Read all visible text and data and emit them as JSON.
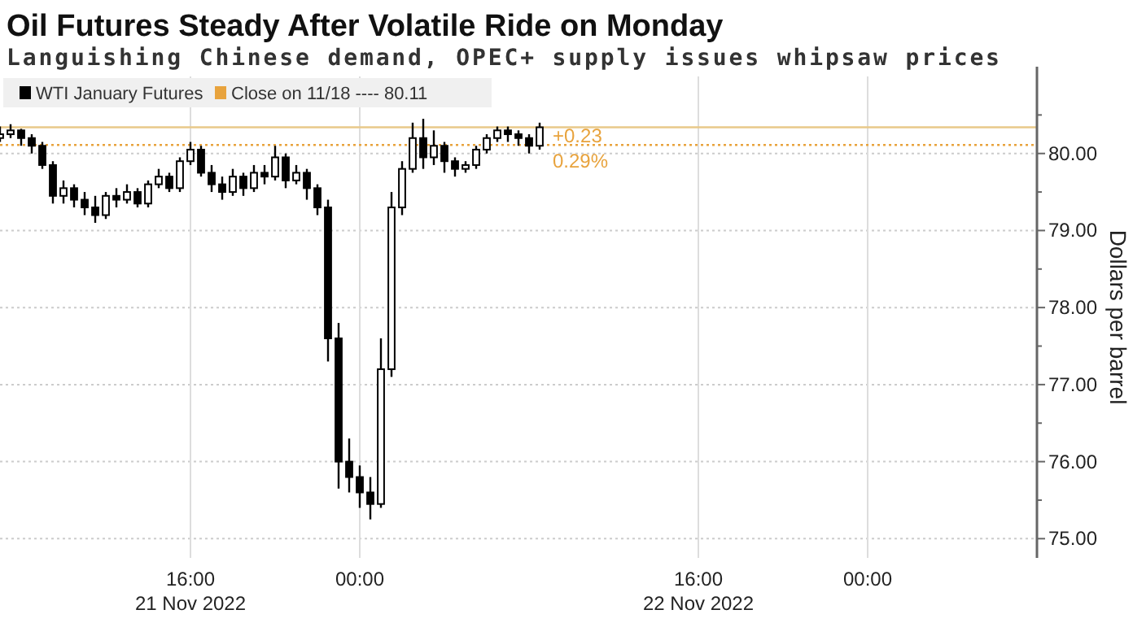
{
  "chart_data": {
    "type": "candlestick",
    "title": "Oil Futures Steady After Volatile Ride on Monday",
    "subtitle": "Languishing Chinese demand, OPEC+ supply issues whipsaw prices",
    "ylabel": "Dollars per barrel",
    "x": [
      "2022-11-21T07:00",
      "2022-11-21T07:30",
      "2022-11-21T08:00",
      "2022-11-21T08:30",
      "2022-11-21T09:00",
      "2022-11-21T09:30",
      "2022-11-21T10:00",
      "2022-11-21T10:30",
      "2022-11-21T11:00",
      "2022-11-21T11:30",
      "2022-11-21T12:00",
      "2022-11-21T12:30",
      "2022-11-21T13:00",
      "2022-11-21T13:30",
      "2022-11-21T14:00",
      "2022-11-21T14:30",
      "2022-11-21T15:00",
      "2022-11-21T15:30",
      "2022-11-21T16:00",
      "2022-11-21T16:30",
      "2022-11-21T17:00",
      "2022-11-21T17:30",
      "2022-11-21T18:00",
      "2022-11-21T18:30",
      "2022-11-21T19:00",
      "2022-11-21T19:30",
      "2022-11-21T20:00",
      "2022-11-21T20:30",
      "2022-11-21T21:00",
      "2022-11-21T21:30",
      "2022-11-21T22:00",
      "2022-11-21T22:30",
      "2022-11-21T23:00",
      "2022-11-21T23:30",
      "2022-11-22T00:00",
      "2022-11-22T00:30",
      "2022-11-22T01:00",
      "2022-11-22T01:30",
      "2022-11-22T02:00",
      "2022-11-22T02:30",
      "2022-11-22T03:00",
      "2022-11-22T03:30",
      "2022-11-22T04:00",
      "2022-11-22T04:30",
      "2022-11-22T05:00",
      "2022-11-22T05:30",
      "2022-11-22T06:00",
      "2022-11-22T06:30",
      "2022-11-22T07:00",
      "2022-11-22T07:30",
      "2022-11-22T08:00",
      "2022-11-22T08:30"
    ],
    "series": [
      {
        "name": "WTI January Futures",
        "color": "#000000",
        "ohlc": [
          [
            80.2,
            80.35,
            80.15,
            80.25
          ],
          [
            80.25,
            80.38,
            80.2,
            80.3
          ],
          [
            80.3,
            80.32,
            80.1,
            80.2
          ],
          [
            80.2,
            80.25,
            80.0,
            80.1
          ],
          [
            80.1,
            80.15,
            79.8,
            79.85
          ],
          [
            79.85,
            79.9,
            79.35,
            79.45
          ],
          [
            79.45,
            79.65,
            79.35,
            79.55
          ],
          [
            79.55,
            79.6,
            79.3,
            79.4
          ],
          [
            79.4,
            79.5,
            79.2,
            79.3
          ],
          [
            79.3,
            79.45,
            79.1,
            79.2
          ],
          [
            79.2,
            79.5,
            79.15,
            79.45
          ],
          [
            79.45,
            79.55,
            79.3,
            79.4
          ],
          [
            79.4,
            79.6,
            79.35,
            79.5
          ],
          [
            79.5,
            79.55,
            79.3,
            79.35
          ],
          [
            79.35,
            79.65,
            79.3,
            79.6
          ],
          [
            79.6,
            79.8,
            79.55,
            79.7
          ],
          [
            79.7,
            79.75,
            79.5,
            79.55
          ],
          [
            79.55,
            79.95,
            79.5,
            79.9
          ],
          [
            79.9,
            80.15,
            79.85,
            80.05
          ],
          [
            80.05,
            80.1,
            79.7,
            79.75
          ],
          [
            79.75,
            79.85,
            79.5,
            79.6
          ],
          [
            79.6,
            79.7,
            79.4,
            79.5
          ],
          [
            79.5,
            79.8,
            79.45,
            79.7
          ],
          [
            79.7,
            79.75,
            79.45,
            79.55
          ],
          [
            79.55,
            79.85,
            79.5,
            79.75
          ],
          [
            79.75,
            79.85,
            79.6,
            79.7
          ],
          [
            79.7,
            80.1,
            79.65,
            79.95
          ],
          [
            79.95,
            80.0,
            79.55,
            79.65
          ],
          [
            79.65,
            79.85,
            79.6,
            79.75
          ],
          [
            79.75,
            79.8,
            79.4,
            79.55
          ],
          [
            79.55,
            79.6,
            79.2,
            79.3
          ],
          [
            79.3,
            79.4,
            77.3,
            77.6
          ],
          [
            77.6,
            77.8,
            75.65,
            76.0
          ],
          [
            76.0,
            76.3,
            75.6,
            75.8
          ],
          [
            75.8,
            75.95,
            75.4,
            75.6
          ],
          [
            75.6,
            75.8,
            75.25,
            75.45
          ],
          [
            75.45,
            77.6,
            75.4,
            77.2
          ],
          [
            77.2,
            79.5,
            77.1,
            79.3
          ],
          [
            79.3,
            79.9,
            79.2,
            79.8
          ],
          [
            79.8,
            80.4,
            79.75,
            80.2
          ],
          [
            80.2,
            80.45,
            79.8,
            79.95
          ],
          [
            79.95,
            80.3,
            79.85,
            80.1
          ],
          [
            80.1,
            80.15,
            79.75,
            79.9
          ],
          [
            79.9,
            79.95,
            79.7,
            79.8
          ],
          [
            79.8,
            79.9,
            79.75,
            79.85
          ],
          [
            79.85,
            80.1,
            79.8,
            80.05
          ],
          [
            80.05,
            80.25,
            80.0,
            80.2
          ],
          [
            80.2,
            80.35,
            80.15,
            80.3
          ],
          [
            80.3,
            80.35,
            80.15,
            80.25
          ],
          [
            80.25,
            80.3,
            80.1,
            80.2
          ],
          [
            80.2,
            80.25,
            80.0,
            80.1
          ],
          [
            80.1,
            80.4,
            80.05,
            80.34
          ]
        ]
      }
    ],
    "xlim": [
      "2022-11-21T07:00",
      "2022-11-23T08:00"
    ],
    "xticks": [
      {
        "value": "2022-11-21T16:00",
        "label": "16:00\n21 Nov 2022"
      },
      {
        "value": "2022-11-22T00:00",
        "label": "00:00"
      },
      {
        "value": "2022-11-22T16:00",
        "label": "16:00\n22 Nov 2022"
      },
      {
        "value": "2022-11-23T00:00",
        "label": "00:00"
      }
    ],
    "ylim": [
      74.75,
      81.0
    ],
    "yticks": [
      {
        "value": 75,
        "label": "75.00"
      },
      {
        "value": 75.5,
        "label": null
      },
      {
        "value": 76,
        "label": "76.00"
      },
      {
        "value": 76.5,
        "label": null
      },
      {
        "value": 77,
        "label": "77.00"
      },
      {
        "value": 77.5,
        "label": null
      },
      {
        "value": 78,
        "label": "78.00"
      },
      {
        "value": 78.5,
        "label": null
      },
      {
        "value": 79,
        "label": "79.00"
      },
      {
        "value": 79.5,
        "label": null
      },
      {
        "value": 80,
        "label": "80.00"
      },
      {
        "value": 80.5,
        "label": null
      }
    ],
    "ref_lines": [
      {
        "axis": "y",
        "value": 80.11,
        "label": "Close on 11/18 ---- 80.11",
        "color": "#e8a33d",
        "line_style": "dotted"
      },
      {
        "axis": "y",
        "value": 80.34,
        "color": "#e8c98a",
        "line_style": "solid"
      }
    ],
    "annotations": [
      {
        "text": "+0.23",
        "x": "2022-11-22T08:30",
        "y": 80.34
      },
      {
        "text": "0.29%",
        "x": "2022-11-22T08:30",
        "y": 80.11
      }
    ],
    "grid": true,
    "legend": "top left"
  }
}
